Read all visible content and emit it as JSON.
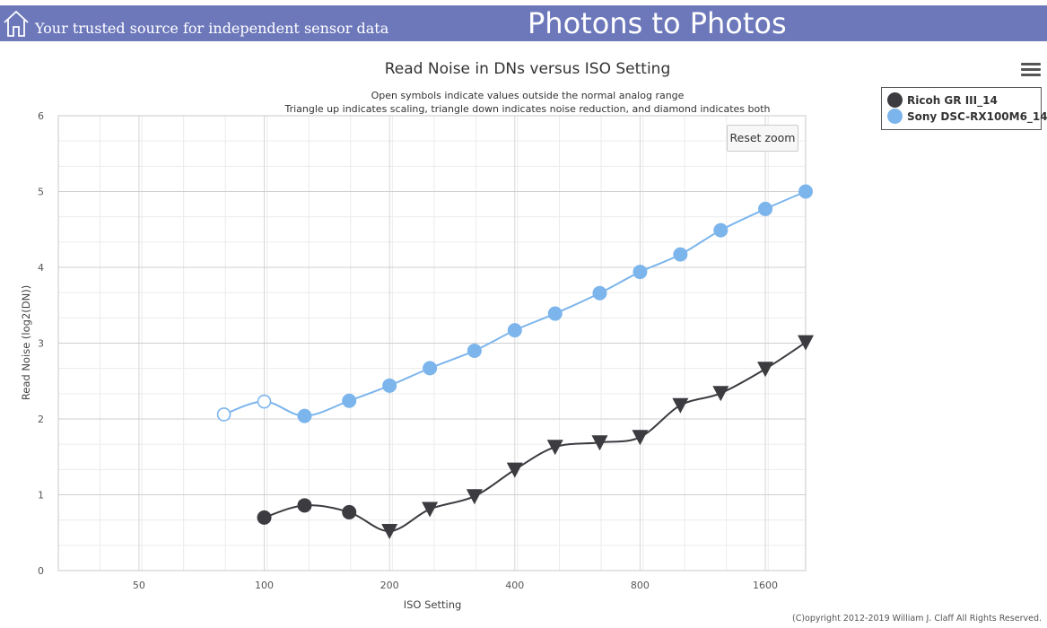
{
  "header": {
    "tagline": "Your trusted source for independent sensor data",
    "site_title": "Photons to Photos"
  },
  "reset_zoom_label": "Reset zoom",
  "copyright": "(C)opyright 2012-2019 William J. Claff All Rights Reserved.",
  "icons": {
    "home": "home-icon",
    "menu": "hamburger-menu-icon"
  },
  "colors": {
    "header_bg": "#6d78bb",
    "ricoh": "#3b3b40",
    "sony": "#7cb5ec"
  },
  "chart_data": {
    "type": "line",
    "title": "Read Noise in DNs versus ISO Setting",
    "subtitle": [
      "Open symbols indicate values outside the normal analog range",
      "Triangle up indicates scaling, triangle down indicates noise reduction, and diamond indicates both"
    ],
    "xlabel": "ISO Setting",
    "ylabel": "Read Noise (log2(DN))",
    "x_scale": "log2",
    "xlim": [
      32,
      2000
    ],
    "ylim": [
      0,
      6
    ],
    "xticks": [
      50,
      100,
      200,
      400,
      800,
      1600
    ],
    "yticks": [
      0,
      1,
      2,
      3,
      4,
      5,
      6
    ],
    "grid": true,
    "legend_position": "top-right",
    "series": [
      {
        "name": "Ricoh GR III_14",
        "color": "#3b3b40",
        "points": [
          {
            "x": 100,
            "y": 0.7,
            "marker": "circle"
          },
          {
            "x": 125,
            "y": 0.86,
            "marker": "circle"
          },
          {
            "x": 160,
            "y": 0.77,
            "marker": "circle"
          },
          {
            "x": 200,
            "y": 0.52,
            "marker": "triangle-down"
          },
          {
            "x": 250,
            "y": 0.81,
            "marker": "triangle-down"
          },
          {
            "x": 320,
            "y": 0.98,
            "marker": "triangle-down"
          },
          {
            "x": 400,
            "y": 1.33,
            "marker": "triangle-down"
          },
          {
            "x": 500,
            "y": 1.63,
            "marker": "triangle-down"
          },
          {
            "x": 640,
            "y": 1.69,
            "marker": "triangle-down"
          },
          {
            "x": 800,
            "y": 1.76,
            "marker": "triangle-down"
          },
          {
            "x": 1000,
            "y": 2.18,
            "marker": "triangle-down"
          },
          {
            "x": 1250,
            "y": 2.34,
            "marker": "triangle-down"
          },
          {
            "x": 1600,
            "y": 2.66,
            "marker": "triangle-down"
          },
          {
            "x": 2000,
            "y": 3.01,
            "marker": "triangle-down"
          }
        ]
      },
      {
        "name": "Sony DSC-RX100M6_14",
        "color": "#7cb5ec",
        "points": [
          {
            "x": 80,
            "y": 2.06,
            "marker": "open-circle"
          },
          {
            "x": 100,
            "y": 2.23,
            "marker": "open-circle"
          },
          {
            "x": 125,
            "y": 2.04,
            "marker": "circle"
          },
          {
            "x": 160,
            "y": 2.24,
            "marker": "circle"
          },
          {
            "x": 200,
            "y": 2.44,
            "marker": "circle"
          },
          {
            "x": 250,
            "y": 2.67,
            "marker": "circle"
          },
          {
            "x": 320,
            "y": 2.9,
            "marker": "circle"
          },
          {
            "x": 400,
            "y": 3.17,
            "marker": "circle"
          },
          {
            "x": 500,
            "y": 3.39,
            "marker": "circle"
          },
          {
            "x": 640,
            "y": 3.66,
            "marker": "circle"
          },
          {
            "x": 800,
            "y": 3.94,
            "marker": "circle"
          },
          {
            "x": 1000,
            "y": 4.17,
            "marker": "circle"
          },
          {
            "x": 1250,
            "y": 4.49,
            "marker": "circle"
          },
          {
            "x": 1600,
            "y": 4.77,
            "marker": "circle"
          },
          {
            "x": 2000,
            "y": 5.0,
            "marker": "circle"
          }
        ]
      }
    ]
  }
}
